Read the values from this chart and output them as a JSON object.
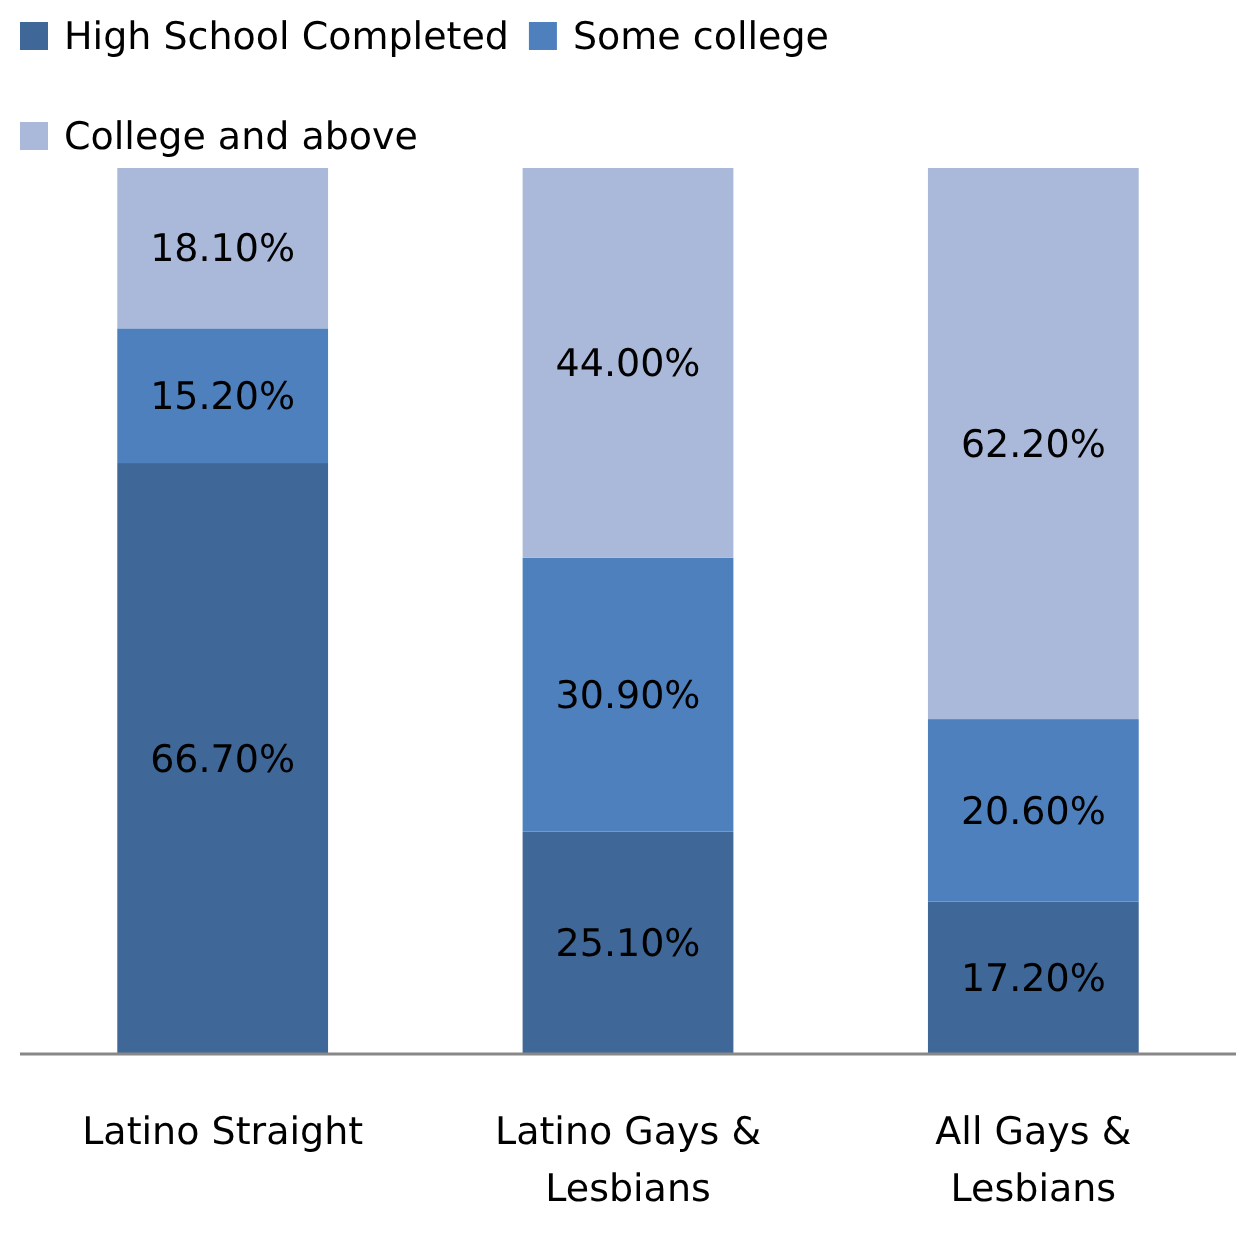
{
  "chart_data": {
    "type": "bar",
    "stacked": true,
    "categories": [
      "Latino Straight",
      "Latino Gays & Lesbians",
      "All Gays & Lesbians"
    ],
    "series": [
      {
        "name": "High School Completed",
        "color": "#3f6797",
        "values": [
          66.7,
          25.1,
          17.2
        ],
        "value_labels": [
          "66.70%",
          "25.10%",
          "17.20%"
        ]
      },
      {
        "name": "Some college",
        "color": "#4e80bd",
        "values": [
          15.2,
          30.9,
          20.6
        ],
        "value_labels": [
          "15.20%",
          "30.90%",
          "20.60%"
        ]
      },
      {
        "name": "College and above",
        "color": "#aab9d9",
        "values": [
          18.1,
          44.0,
          62.2
        ],
        "value_labels": [
          "18.10%",
          "44.00%",
          "62.20%"
        ]
      }
    ],
    "ylim": [
      0,
      100
    ],
    "tick_labels": "x",
    "legend": "top"
  }
}
